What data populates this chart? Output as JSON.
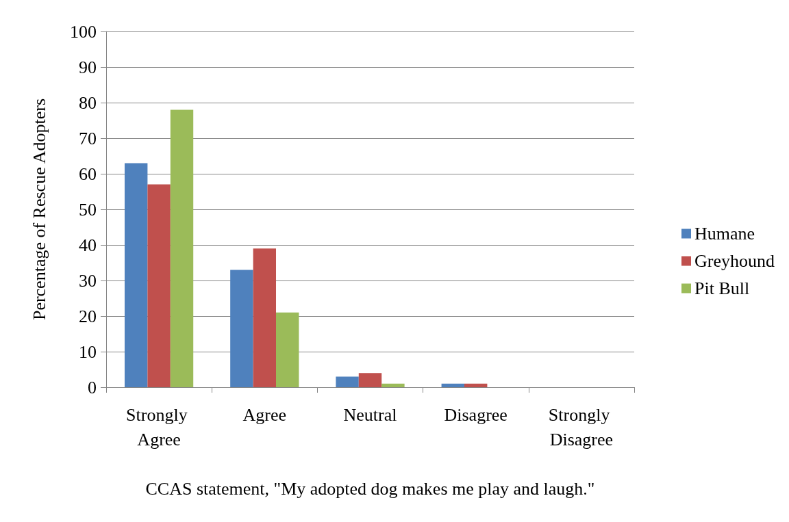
{
  "chart_data": {
    "type": "bar",
    "xlabel": "CCAS statement, \"My adopted dog makes me play and laugh.\"",
    "ylabel": "Percentage of Rescue Adopters",
    "categories": [
      "Strongly Agree",
      "Agree",
      "Neutral",
      "Disagree",
      "Strongly Disagree"
    ],
    "series": [
      {
        "name": "Humane",
        "color": "#4f81bd",
        "values": [
          63,
          33,
          3,
          1,
          0
        ]
      },
      {
        "name": "Greyhound",
        "color": "#c0504d",
        "values": [
          57,
          39,
          4,
          1,
          0
        ]
      },
      {
        "name": "Pit Bull",
        "color": "#9bbb59",
        "values": [
          78,
          21,
          1,
          0,
          0
        ]
      }
    ],
    "ylim": [
      0,
      100
    ],
    "yticks": [
      0,
      10,
      20,
      30,
      40,
      50,
      60,
      70,
      80,
      90,
      100
    ],
    "grid": "y",
    "legend": "right"
  }
}
